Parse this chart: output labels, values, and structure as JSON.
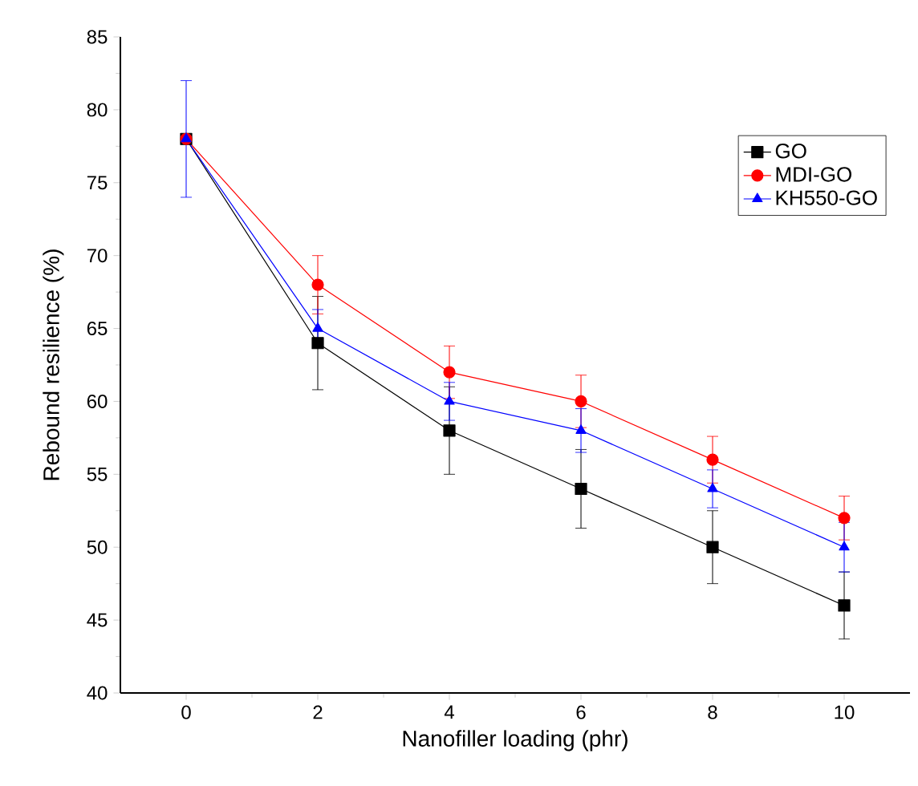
{
  "chart_data": {
    "type": "line",
    "xlabel": "Nanofiller loading (phr)",
    "ylabel": "Rebound resilience (%)",
    "x": [
      0,
      2,
      4,
      6,
      8,
      10
    ],
    "series": [
      {
        "name": "GO",
        "color": "#000000",
        "marker": "square",
        "values": [
          78,
          64,
          58,
          54,
          50,
          46
        ],
        "errors": [
          null,
          3.2,
          3,
          2.7,
          2.5,
          2.3
        ]
      },
      {
        "name": "MDI-GO",
        "color": "#ff0000",
        "marker": "circle",
        "values": [
          78,
          68,
          62,
          60,
          56,
          52
        ],
        "errors": [
          null,
          2,
          1.8,
          1.8,
          1.6,
          1.5
        ]
      },
      {
        "name": "KH550-GO",
        "color": "#0000ff",
        "marker": "triangle",
        "values": [
          78,
          65,
          60,
          58,
          54,
          50
        ],
        "errors": [
          4,
          1.3,
          1.3,
          1.5,
          1.3,
          1.7
        ]
      }
    ],
    "xlim": [
      -1,
      11
    ],
    "xticks": [
      0,
      2,
      4,
      6,
      8,
      10
    ],
    "ylim": [
      40,
      85
    ],
    "yticks": [
      40,
      45,
      50,
      55,
      60,
      65,
      70,
      75,
      80,
      85
    ],
    "grid": false,
    "legend": "top right",
    "line_style": "solid"
  }
}
